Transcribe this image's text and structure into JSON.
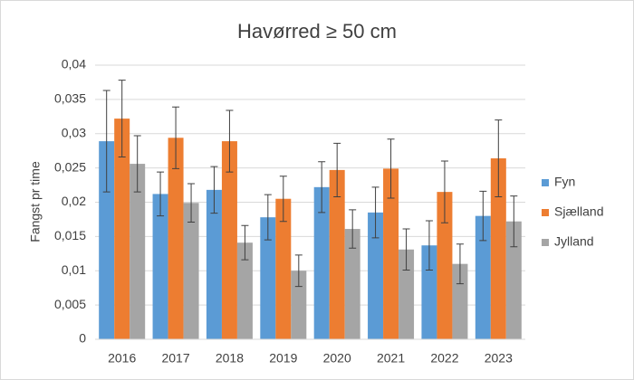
{
  "chart_data": {
    "type": "bar",
    "title": "Havørred ≥ 50 cm",
    "y_label": "Fangst pr time",
    "categories": [
      "2016",
      "2017",
      "2018",
      "2019",
      "2020",
      "2021",
      "2022",
      "2023"
    ],
    "series": [
      {
        "name": "Fyn",
        "color": "#5b9bd5",
        "values": [
          0.0289,
          0.0212,
          0.0218,
          0.0178,
          0.0222,
          0.0185,
          0.0137,
          0.018
        ],
        "errors": [
          0.0074,
          0.0032,
          0.0034,
          0.0033,
          0.0037,
          0.0037,
          0.0036,
          0.0036
        ]
      },
      {
        "name": "Sjælland",
        "color": "#ed7d31",
        "values": [
          0.0322,
          0.0294,
          0.0289,
          0.0205,
          0.0247,
          0.0249,
          0.0215,
          0.0264
        ],
        "errors": [
          0.0056,
          0.0045,
          0.0045,
          0.0033,
          0.0039,
          0.0043,
          0.0045,
          0.0056
        ]
      },
      {
        "name": "Jylland",
        "color": "#a5a5a5",
        "values": [
          0.0256,
          0.0199,
          0.0141,
          0.01,
          0.0161,
          0.0131,
          0.011,
          0.0172
        ],
        "errors": [
          0.0041,
          0.0028,
          0.0025,
          0.0023,
          0.0028,
          0.003,
          0.0029,
          0.0037
        ]
      }
    ],
    "ylim": [
      0,
      0.04
    ],
    "yticks": [
      0,
      {
        "value": 0.005,
        "label": "0,005"
      },
      {
        "value": 0.01,
        "label": "0,01"
      },
      {
        "value": 0.015,
        "label": "0,015"
      },
      {
        "value": 0.02,
        "label": "0,02"
      },
      {
        "value": 0.025,
        "label": "0,025"
      },
      {
        "value": 0.03,
        "label": "0,03"
      },
      {
        "value": 0.035,
        "label": "0,035"
      },
      {
        "value": 0.04,
        "label": "0,04"
      }
    ],
    "grid": true,
    "legend": "right"
  }
}
